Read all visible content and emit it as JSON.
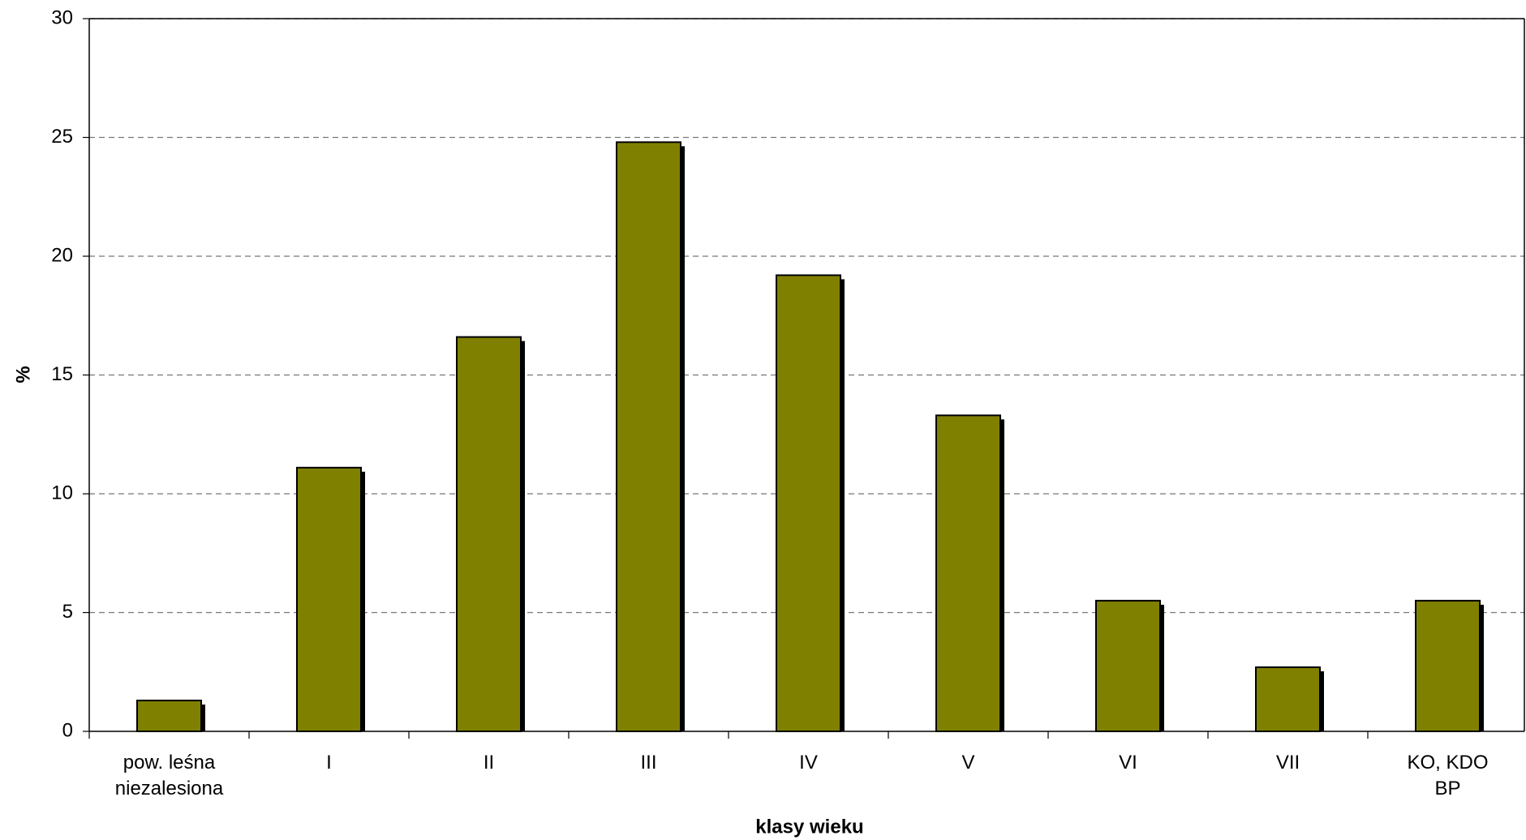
{
  "chart_data": {
    "type": "bar",
    "x_label": "klasy wieku",
    "y_label": "%",
    "categories": [
      "pow. leśna\nniezalesiona",
      "I",
      "II",
      "III",
      "IV",
      "V",
      "VI",
      "VII",
      "KO, KDO\nBP"
    ],
    "values": [
      1.3,
      11.1,
      16.6,
      24.8,
      19.2,
      13.3,
      5.5,
      2.7,
      5.5
    ],
    "color": "#808000",
    "ylim": [
      0,
      30
    ],
    "yticks": [
      0,
      5,
      10,
      15,
      20,
      25,
      30
    ],
    "grid": true
  }
}
